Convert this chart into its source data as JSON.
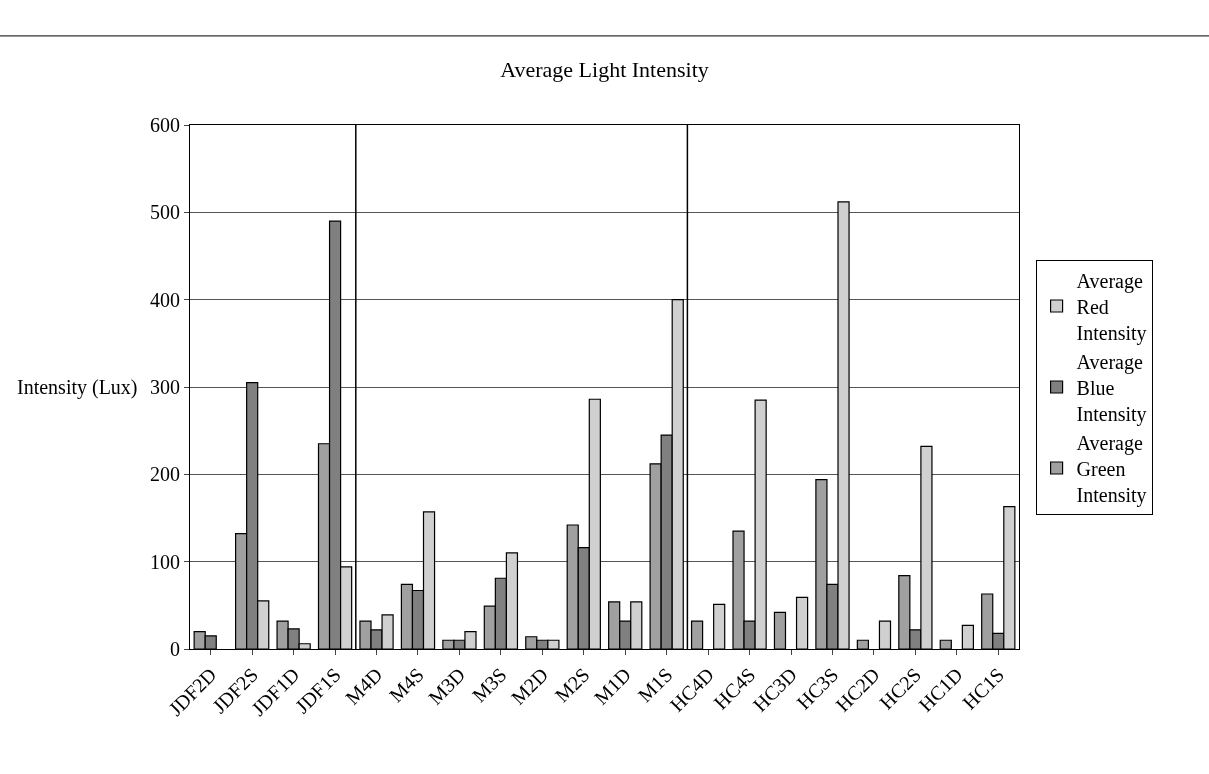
{
  "chart_data": {
    "type": "bar",
    "title": "Average Light Intensity",
    "ylabel": "Intensity (Lux)",
    "categories": [
      "JDF2D",
      "JDF2S",
      "JDF1D",
      "JDF1S",
      "M4D",
      "M4S",
      "M3D",
      "M3S",
      "M2D",
      "M2S",
      "M1D",
      "M1S",
      "HC4D",
      "HC4S",
      "HC3D",
      "HC3S",
      "HC2D",
      "HC2S",
      "HC1D",
      "HC1S"
    ],
    "series": [
      {
        "name": "Average Green Intensity",
        "color": "#a0a0a0",
        "values": [
          20,
          132,
          32,
          235,
          32,
          74,
          10,
          49,
          14,
          142,
          54,
          212,
          32,
          135,
          42,
          194,
          10,
          84,
          10,
          63
        ]
      },
      {
        "name": "Average Blue Intensity",
        "color": "#808080",
        "values": [
          15,
          305,
          23,
          490,
          22,
          67,
          10,
          81,
          10,
          116,
          32,
          245,
          null,
          32,
          null,
          74,
          null,
          22,
          null,
          18
        ]
      },
      {
        "name": "Average Red Intensity",
        "color": "#d0d0d0",
        "values": [
          null,
          55,
          6,
          94,
          39,
          157,
          20,
          110,
          10,
          286,
          54,
          400,
          51,
          285,
          59,
          512,
          32,
          232,
          27,
          163
        ]
      }
    ],
    "ylim": [
      0,
      600
    ],
    "yticks": [
      0,
      100,
      200,
      300,
      400,
      500,
      600
    ],
    "grid": "y",
    "legend": "right"
  }
}
